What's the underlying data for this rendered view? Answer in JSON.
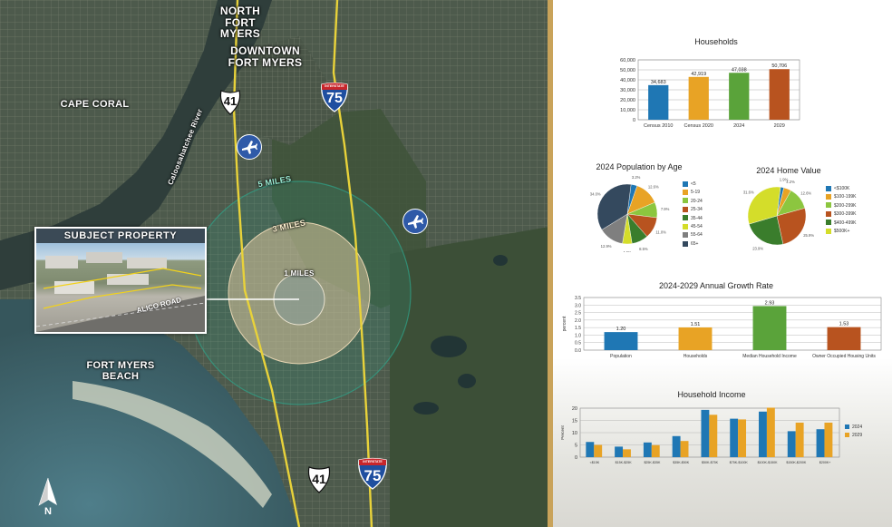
{
  "map": {
    "labels": {
      "north_fort_myers": "NORTH\nFORT MYERS",
      "downtown_fort_myers": "DOWNTOWN\nFORT MYERS",
      "cape_coral": "CAPE CORAL",
      "fort_myers_beach": "FORT MYERS\nBEACH",
      "river": "Caloosahatchee River"
    },
    "highways": {
      "us41_top": "41",
      "us41_bottom": "41",
      "i75_top": "75",
      "i75_bottom": "75",
      "interstate_word": "INTERSTATE"
    },
    "rings": {
      "outer": "5 MILES",
      "middle": "3 MILES",
      "inner": "1 MILES"
    },
    "subject": {
      "title": "SUBJECT PROPERTY",
      "road": "ALICO ROAD"
    },
    "compass": "N",
    "colors": {
      "ring5": "#2fa48a",
      "ring3": "#d9c29a",
      "highway": "#e8d23a",
      "airport": "#2f5aa8"
    }
  },
  "charts": {
    "households": {
      "title": "Households",
      "chart_data": {
        "type": "bar",
        "categories": [
          "Census 2010",
          "Census 2020",
          "2024",
          "2029"
        ],
        "values": [
          34683,
          42919,
          47038,
          50706
        ],
        "value_labels": [
          "34,683",
          "42,919",
          "47,038",
          "50,706"
        ],
        "colors": [
          "#1f77b4",
          "#e8a325",
          "#5aa33a",
          "#b8531f"
        ],
        "ylim": [
          0,
          60000
        ],
        "yticks": [
          "0",
          "10,000",
          "20,000",
          "30,000",
          "40,000",
          "50,000",
          "60,000"
        ]
      }
    },
    "population_age": {
      "title": "2024 Population by Age",
      "chart_data": {
        "type": "pie",
        "labels": [
          "<5",
          "5-19",
          "20-24",
          "25-34",
          "35-44",
          "45-54",
          "55-64",
          "65+"
        ],
        "values": [
          3.2,
          12.6,
          7.9,
          11.0,
          8.5,
          4.9,
          12.9,
          34.0
        ],
        "value_labels": [
          "3.2%",
          "12.6%",
          "7.9%",
          "11.0%",
          "8.5%",
          "4.9%",
          "12.9%",
          "34.0%"
        ],
        "colors": [
          "#1f77b4",
          "#e8a325",
          "#8cc63f",
          "#b8531f",
          "#3a7d2c",
          "#d4dd2a",
          "#7f7f7f",
          "#34495e"
        ]
      }
    },
    "home_value": {
      "title": "2024 Home Value",
      "chart_data": {
        "type": "pie",
        "labels": [
          "<$100K",
          "$100-199K",
          "$200-299K",
          "$300-399K",
          "$400-499K",
          "$500K+"
        ],
        "values": [
          1.9,
          4.2,
          12.6,
          25.9,
          23.9,
          31.6
        ],
        "value_labels": [
          "1.9%",
          "4.2%",
          "12.6%",
          "25.9%",
          "23.9%",
          "31.6%"
        ],
        "colors": [
          "#1f77b4",
          "#e8a325",
          "#8cc63f",
          "#b8531f",
          "#3a7d2c",
          "#d4dd2a"
        ]
      }
    },
    "growth": {
      "title": "2024-2029 Annual Growth Rate",
      "chart_data": {
        "type": "bar",
        "categories": [
          "Population",
          "Households",
          "Median Household Income",
          "Owner Occupied Housing Units"
        ],
        "values": [
          1.2,
          1.51,
          2.93,
          1.53
        ],
        "value_labels": [
          "1.20",
          "1.51",
          "2.93",
          "1.53"
        ],
        "colors": [
          "#1f77b4",
          "#e8a325",
          "#5aa33a",
          "#b8531f"
        ],
        "ylim": [
          0,
          3.5
        ],
        "ylabel": "percent",
        "yticks": [
          "0.0",
          "0.5",
          "1.0",
          "1.5",
          "2.0",
          "2.5",
          "3.0",
          "3.5"
        ]
      }
    },
    "income": {
      "title": "Household Income",
      "chart_data": {
        "type": "bar",
        "categories": [
          "<$15K",
          "$15K-$25K",
          "$25K-$35K",
          "$35K-$50K",
          "$50K-$75K",
          "$75K-$100K",
          "$100K-$150K",
          "$150K-$200K",
          "$200K+"
        ],
        "series": [
          {
            "name": "2024",
            "color": "#1f77b4",
            "values": [
              6.2,
              4.3,
              6.0,
              8.6,
              19.3,
              15.7,
              18.6,
              10.6,
              11.4
            ]
          },
          {
            "name": "2029",
            "color": "#e8a325",
            "values": [
              5.0,
              3.2,
              4.9,
              6.6,
              17.3,
              15.4,
              20.2,
              14.1,
              14.1
            ]
          }
        ],
        "ylim": [
          0,
          20
        ],
        "ylabel": "Percent",
        "yticks": [
          "0",
          "5",
          "10",
          "15",
          "20"
        ]
      }
    }
  }
}
